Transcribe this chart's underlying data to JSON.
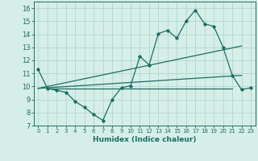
{
  "xlabel": "Humidex (Indice chaleur)",
  "bg_color": "#d6eee8",
  "grid_color": "#b8d8d2",
  "line_color": "#1a6e63",
  "xlim": [
    -0.5,
    23.5
  ],
  "ylim": [
    7,
    16.5
  ],
  "yticks": [
    7,
    8,
    9,
    10,
    11,
    12,
    13,
    14,
    15,
    16
  ],
  "xticks": [
    0,
    1,
    2,
    3,
    4,
    5,
    6,
    7,
    8,
    9,
    10,
    11,
    12,
    13,
    14,
    15,
    16,
    17,
    18,
    19,
    20,
    21,
    22,
    23
  ],
  "main_line_x": [
    0,
    1,
    2,
    3,
    4,
    5,
    6,
    7,
    8,
    9,
    10,
    11,
    12,
    13,
    14,
    15,
    16,
    17,
    18,
    19,
    20,
    21,
    22,
    23
  ],
  "main_line_y": [
    11.3,
    9.85,
    9.7,
    9.55,
    8.85,
    8.4,
    7.85,
    7.4,
    9.0,
    9.9,
    10.05,
    12.3,
    11.65,
    14.05,
    14.3,
    13.7,
    15.0,
    15.85,
    14.8,
    14.6,
    13.0,
    10.85,
    9.75,
    9.9
  ],
  "reg_line1_x": [
    0,
    22
  ],
  "reg_line1_y": [
    9.85,
    13.1
  ],
  "reg_line2_x": [
    0,
    22
  ],
  "reg_line2_y": [
    9.85,
    10.85
  ],
  "reg_line3_x": [
    1,
    21
  ],
  "reg_line3_y": [
    9.85,
    9.85
  ]
}
